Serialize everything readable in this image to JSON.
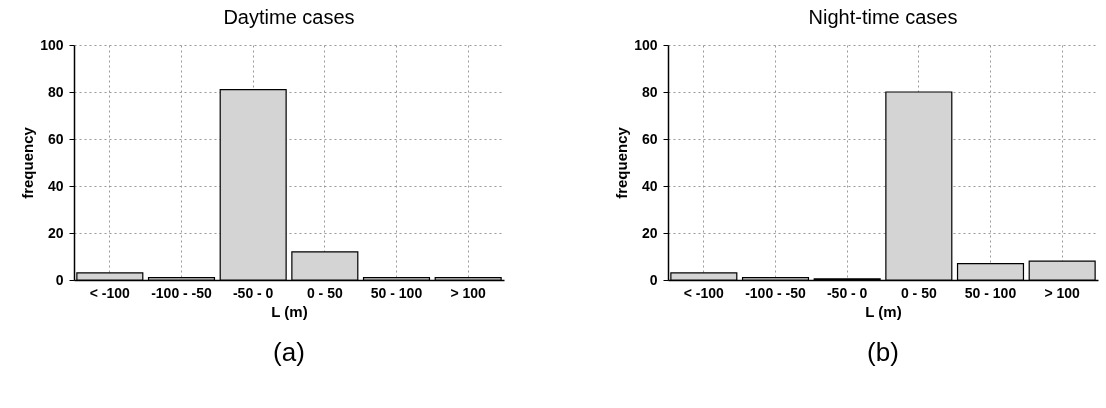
{
  "chart_data": [
    {
      "type": "bar",
      "title": "Daytime cases",
      "xlabel": "L (m)",
      "ylabel": "frequency",
      "categories": [
        "< -100",
        "-100  -  -50",
        "-50  - 0",
        "0  -  50",
        "50  -  100",
        "> 100"
      ],
      "values": [
        3,
        1,
        81,
        12,
        1,
        1
      ],
      "color": "#d4d4d4",
      "ylim": [
        0,
        100
      ],
      "yticks": [
        0,
        20,
        40,
        60,
        80,
        100
      ],
      "grid": true,
      "annotations": [
        "(a)"
      ]
    },
    {
      "type": "bar",
      "title": "Night-time cases",
      "xlabel": "L (m)",
      "ylabel": "frequency",
      "categories": [
        "< -100",
        "-100  -  -50",
        "-50  -  0",
        "0  -  50",
        "50  -  100",
        "> 100"
      ],
      "values": [
        3,
        1,
        0.5,
        80,
        7,
        8
      ],
      "color": "#d4d4d4",
      "ylim": [
        0,
        100
      ],
      "yticks": [
        0,
        20,
        40,
        60,
        80,
        100
      ],
      "grid": true,
      "annotations": [
        "(b)"
      ]
    }
  ]
}
